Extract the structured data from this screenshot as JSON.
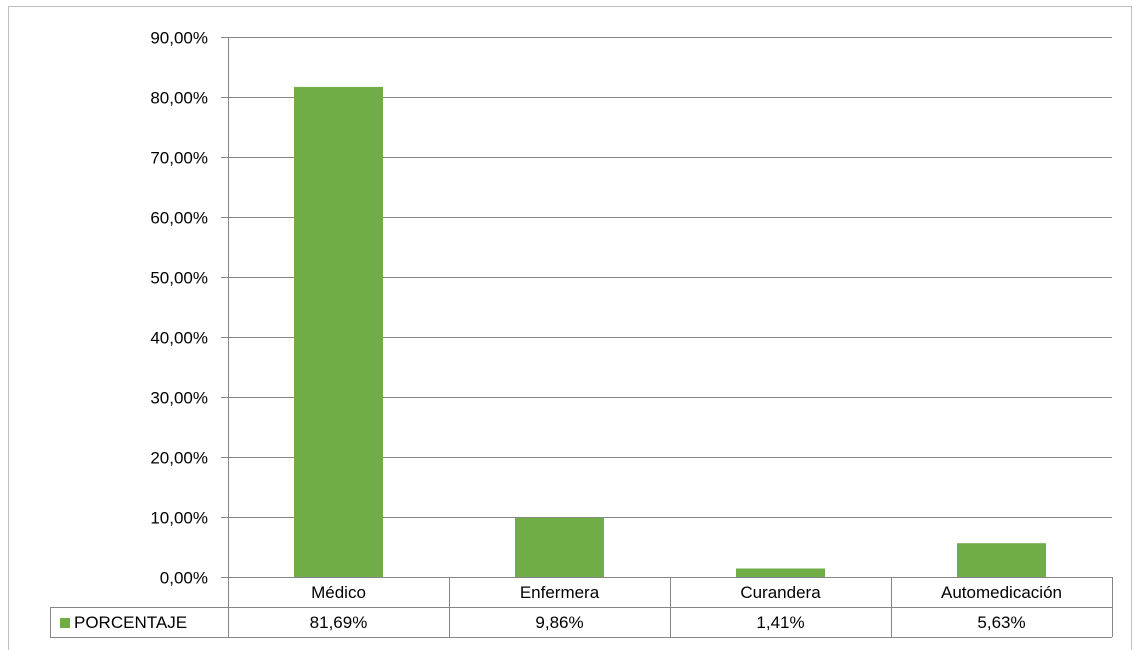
{
  "chart_data": {
    "type": "bar",
    "categories": [
      "Médico",
      "Enfermera",
      "Curandera",
      "Automedicación"
    ],
    "series": [
      {
        "name": "PORCENTAJE",
        "values": [
          81.69,
          9.86,
          1.41,
          5.63
        ],
        "value_labels": [
          "81,69%",
          "9,86%",
          "1,41%",
          "5,63%"
        ]
      }
    ],
    "title": "",
    "xlabel": "",
    "ylabel": "",
    "ylim": [
      0,
      90
    ],
    "yticks": [
      0,
      10,
      20,
      30,
      40,
      50,
      60,
      70,
      80,
      90
    ],
    "ytick_labels": [
      "0,00%",
      "10,00%",
      "20,00%",
      "30,00%",
      "40,00%",
      "50,00%",
      "60,00%",
      "70,00%",
      "80,00%",
      "90,00%"
    ],
    "grid": true,
    "legend": "data-table-left",
    "bar_color": "#70ad47",
    "grid_color": "#868686"
  }
}
